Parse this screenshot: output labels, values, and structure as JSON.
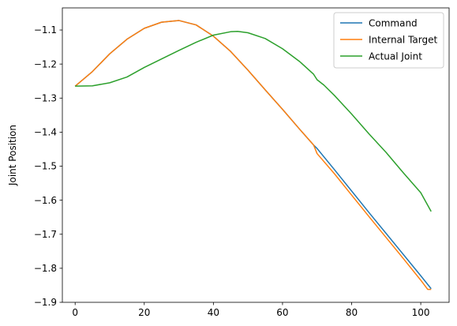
{
  "chart_data": {
    "type": "line",
    "title": "",
    "xlabel": "",
    "ylabel": "Joint Position",
    "xlim": [
      -3.7,
      108.2
    ],
    "ylim": [
      -1.9,
      -1.035
    ],
    "xticks": [
      0,
      20,
      40,
      60,
      80,
      100
    ],
    "yticks": [
      -1.9,
      -1.8,
      -1.7,
      -1.6,
      -1.5,
      -1.4,
      -1.3,
      -1.2,
      -1.1
    ],
    "ytick_labels": [
      "−1.9",
      "−1.8",
      "−1.7",
      "−1.6",
      "−1.5",
      "−1.4",
      "−1.3",
      "−1.2",
      "−1.1"
    ],
    "grid": false,
    "legend_position": "top-right",
    "series": [
      {
        "name": "Command",
        "color": "#1f77b4",
        "x": [
          0,
          5,
          10,
          15,
          20,
          25,
          30,
          35,
          40,
          45,
          50,
          55,
          60,
          65,
          69,
          70,
          75,
          80,
          85,
          90,
          95,
          100,
          103
        ],
        "y": [
          -1.265,
          -1.222,
          -1.17,
          -1.127,
          -1.095,
          -1.077,
          -1.072,
          -1.085,
          -1.118,
          -1.163,
          -1.218,
          -1.276,
          -1.333,
          -1.392,
          -1.438,
          -1.448,
          -1.51,
          -1.573,
          -1.636,
          -1.698,
          -1.76,
          -1.822,
          -1.86
        ]
      },
      {
        "name": "Internal Target",
        "color": "#ff7f0e",
        "x": [
          0,
          5,
          10,
          15,
          20,
          25,
          30,
          35,
          40,
          45,
          50,
          55,
          60,
          65,
          69,
          70,
          75,
          80,
          85,
          90,
          95,
          100,
          102,
          103
        ],
        "y": [
          -1.265,
          -1.222,
          -1.17,
          -1.127,
          -1.095,
          -1.077,
          -1.072,
          -1.085,
          -1.118,
          -1.163,
          -1.218,
          -1.276,
          -1.333,
          -1.392,
          -1.438,
          -1.463,
          -1.522,
          -1.585,
          -1.648,
          -1.71,
          -1.772,
          -1.835,
          -1.862,
          -1.862
        ]
      },
      {
        "name": "Actual Joint",
        "color": "#2ca02c",
        "x": [
          0,
          5,
          10,
          15,
          20,
          25,
          30,
          35,
          40,
          45,
          47,
          50,
          55,
          60,
          65,
          69,
          70,
          72,
          75,
          80,
          85,
          90,
          95,
          100,
          103
        ],
        "y": [
          -1.265,
          -1.264,
          -1.255,
          -1.238,
          -1.21,
          -1.185,
          -1.16,
          -1.136,
          -1.115,
          -1.105,
          -1.104,
          -1.108,
          -1.125,
          -1.155,
          -1.193,
          -1.23,
          -1.246,
          -1.262,
          -1.292,
          -1.347,
          -1.405,
          -1.46,
          -1.52,
          -1.578,
          -1.633
        ]
      }
    ]
  }
}
